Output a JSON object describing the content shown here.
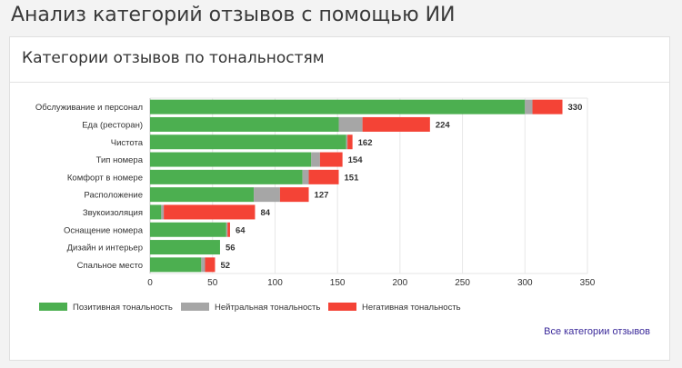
{
  "header": {
    "title": "Анализ категорий отзывов с помощью ИИ"
  },
  "card": {
    "title": "Категории отзывов по тональностям"
  },
  "footer": {
    "link_label": "Все категории отзывов"
  },
  "colors": {
    "positive": "#4caf50",
    "neutral": "#a6a6a6",
    "negative": "#f44336"
  },
  "chart_data": {
    "type": "bar",
    "orientation": "horizontal",
    "stacked": true,
    "categories": [
      "Обслуживание и персонал",
      "Еда (ресторан)",
      "Чистота",
      "Тип номера",
      "Комфорт в номере",
      "Расположение",
      "Звукоизоляция",
      "Оснащение номера",
      "Дизайн и интерьер",
      "Спальное место"
    ],
    "series": [
      {
        "name": "Позитивная тональность",
        "values": [
          300,
          151,
          157,
          129,
          122,
          83,
          9,
          61,
          56,
          41
        ]
      },
      {
        "name": "Нейтральная тональность",
        "values": [
          6,
          19,
          1,
          7,
          5,
          21,
          2,
          1,
          0,
          3
        ]
      },
      {
        "name": "Негативная тональность",
        "values": [
          24,
          54,
          4,
          18,
          24,
          23,
          73,
          2,
          0,
          8
        ]
      }
    ],
    "totals": [
      330,
      224,
      162,
      154,
      151,
      127,
      84,
      64,
      56,
      52
    ],
    "xlim": [
      0,
      350
    ],
    "xticks": [
      0,
      50,
      100,
      150,
      200,
      250,
      300,
      350
    ],
    "grid": true,
    "legend": "bottom-left"
  }
}
